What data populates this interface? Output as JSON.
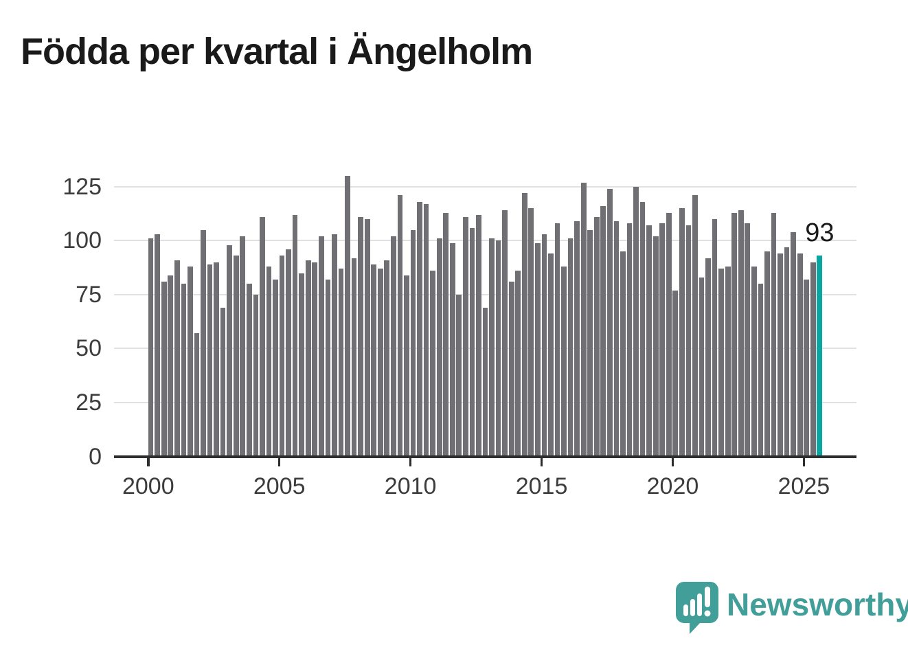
{
  "title": "Födda per kvartal i Ängelholm",
  "annotation": {
    "value_label": "93"
  },
  "branding": {
    "name": "Newsworthy",
    "logo_color": "#419e98"
  },
  "chart_data": {
    "type": "bar",
    "title": "Födda per kvartal i Ängelholm",
    "xlabel": "",
    "ylabel": "",
    "unit": "births per quarter",
    "frequency": "quarterly",
    "start_period": "2000-Q1",
    "end_period": "2025-Q3",
    "x_tick_labels": [
      "2000",
      "2005",
      "2010",
      "2015",
      "2020",
      "2025"
    ],
    "y_tick_labels": [
      "0",
      "25",
      "50",
      "75",
      "100",
      "125"
    ],
    "y_ticks": [
      0,
      25,
      50,
      75,
      100,
      125
    ],
    "ylim": [
      0,
      130
    ],
    "grid": "horizontal",
    "legend_position": "none",
    "bar_color": "#6f6f74",
    "highlight_color": "#0aa5a0",
    "highlight_index": 102,
    "highlight_period": "2025-Q3",
    "highlight_value": 93,
    "values": [
      101,
      103,
      81,
      84,
      91,
      80,
      88,
      57,
      105,
      89,
      90,
      69,
      98,
      93,
      102,
      80,
      75,
      111,
      88,
      82,
      93,
      96,
      112,
      85,
      91,
      90,
      102,
      82,
      103,
      87,
      130,
      92,
      111,
      110,
      89,
      87,
      91,
      102,
      121,
      84,
      105,
      118,
      117,
      86,
      101,
      113,
      99,
      75,
      111,
      106,
      112,
      69,
      101,
      100,
      114,
      81,
      86,
      122,
      115,
      99,
      103,
      94,
      108,
      88,
      101,
      109,
      127,
      105,
      111,
      116,
      124,
      109,
      95,
      108,
      125,
      118,
      107,
      102,
      108,
      113,
      77,
      115,
      107,
      121,
      83,
      92,
      110,
      87,
      88,
      113,
      114,
      108,
      88,
      80,
      95,
      113,
      94,
      97,
      104,
      94,
      82,
      90,
      93
    ]
  }
}
